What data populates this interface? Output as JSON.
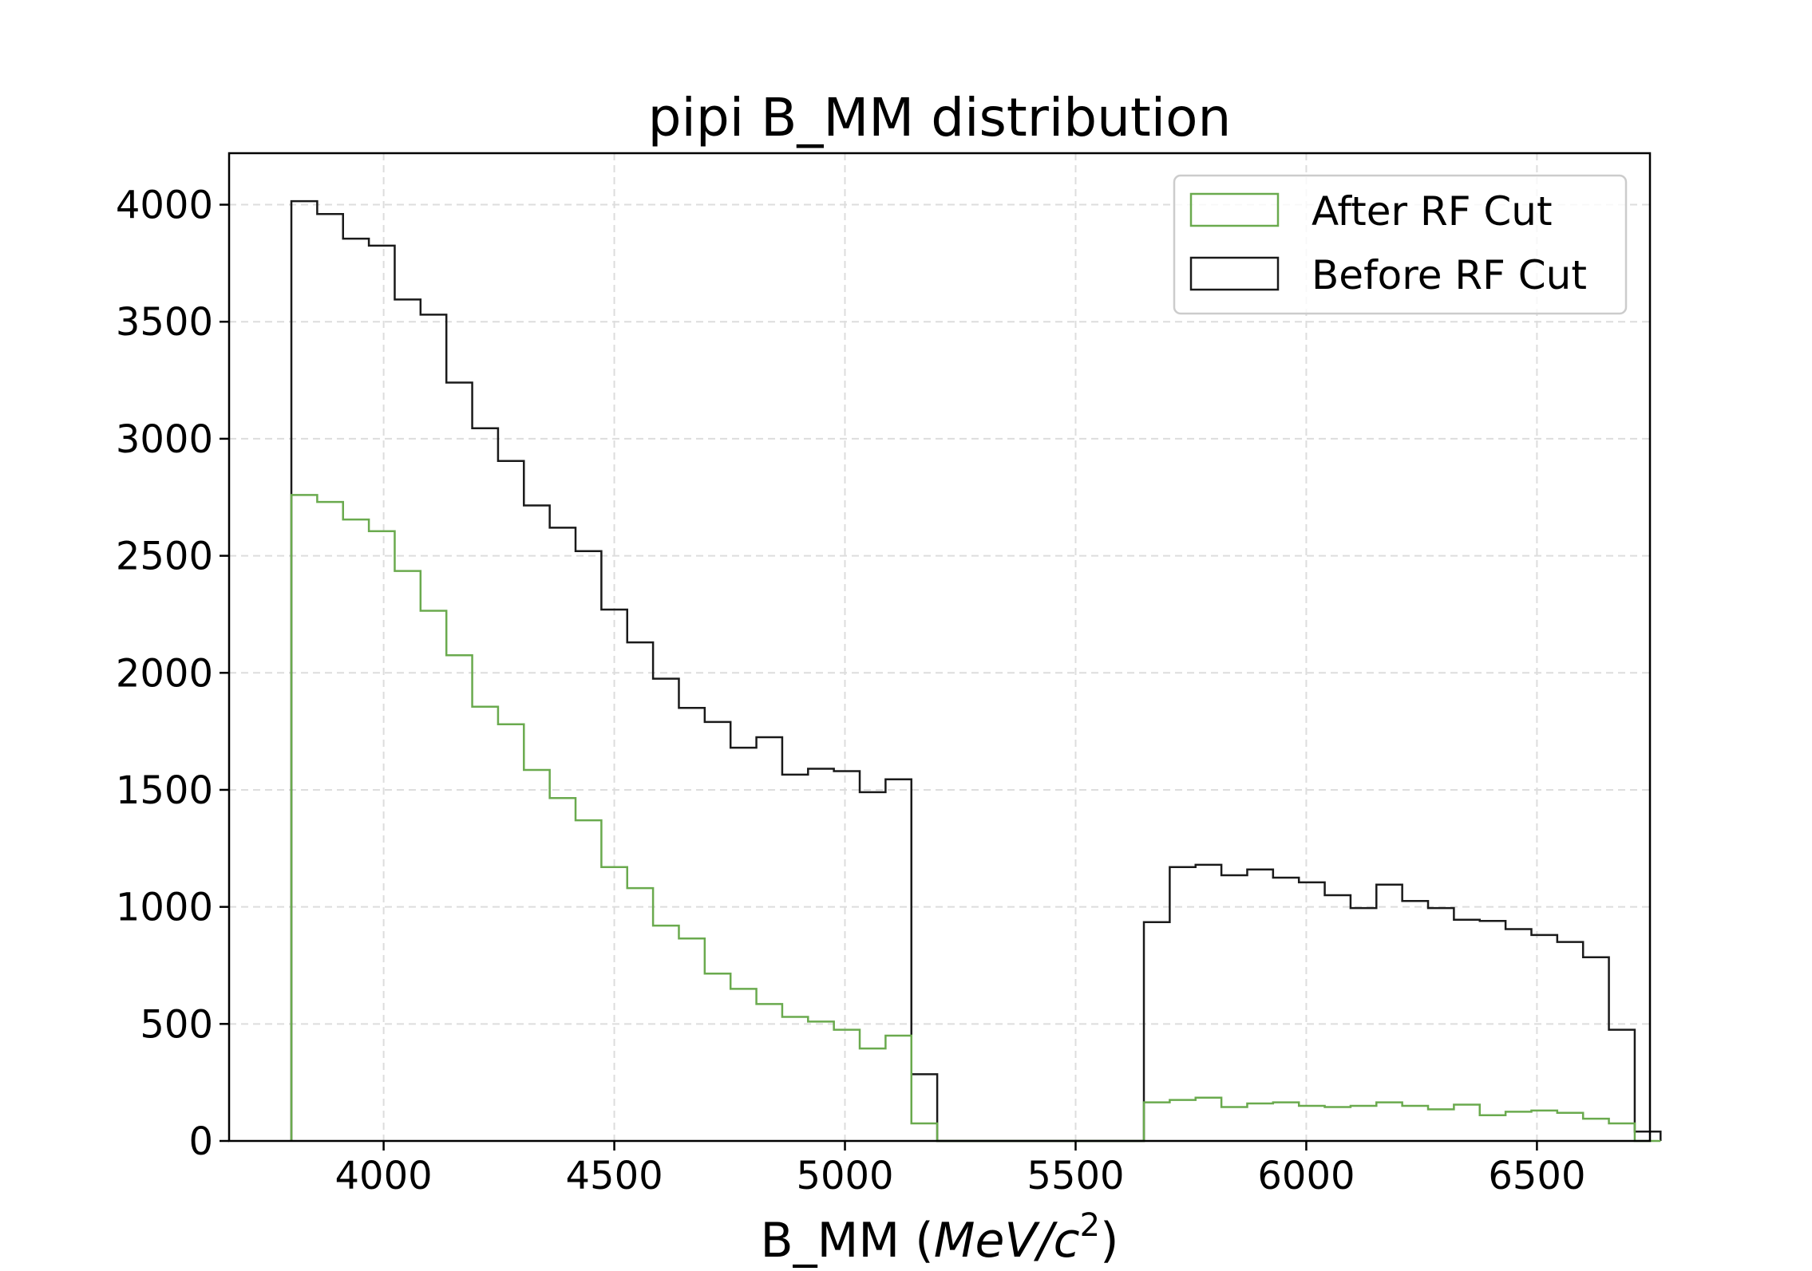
{
  "chart_data": {
    "type": "histogram-step",
    "title": "pipi B_MM distribution",
    "xlabel": {
      "prefix": "B_MM (",
      "unit_main": "MeV/c",
      "unit_sup": "2",
      "suffix": ")"
    },
    "ylabel": "",
    "xlim": [
      3665,
      6745
    ],
    "ylim": [
      0,
      4220
    ],
    "xticks": [
      4000,
      4500,
      5000,
      5500,
      6000,
      6500
    ],
    "yticks": [
      0,
      500,
      1000,
      1500,
      2000,
      2500,
      3000,
      3500,
      4000
    ],
    "grid": true,
    "legend_position": "top-right",
    "bin_width": 56,
    "series": [
      {
        "name": "After RF Cut",
        "color": "#6aaa4e",
        "edges_start": 3800,
        "values": [
          2760,
          2730,
          2655,
          2605,
          2435,
          2265,
          2075,
          1855,
          1780,
          1585,
          1465,
          1370,
          1170,
          1080,
          920,
          865,
          715,
          650,
          585,
          530,
          510,
          475,
          395,
          450,
          75,
          0,
          0,
          0,
          0,
          0,
          0,
          0,
          0,
          165,
          175,
          185,
          145,
          160,
          165,
          150,
          145,
          150,
          165,
          150,
          135,
          155,
          110,
          125,
          130,
          120,
          95,
          75,
          0
        ]
      },
      {
        "name": "Before RF Cut",
        "color": "#1a1a1a",
        "edges_start": 3800,
        "values": [
          4015,
          3960,
          3855,
          3825,
          3595,
          3530,
          3240,
          3045,
          2905,
          2715,
          2620,
          2520,
          2270,
          2130,
          1975,
          1850,
          1790,
          1680,
          1725,
          1565,
          1590,
          1580,
          1490,
          1545,
          285,
          0,
          0,
          0,
          0,
          0,
          0,
          0,
          0,
          935,
          1170,
          1180,
          1135,
          1160,
          1125,
          1105,
          1050,
          995,
          1095,
          1025,
          995,
          945,
          940,
          905,
          880,
          850,
          785,
          475,
          40
        ]
      }
    ]
  }
}
